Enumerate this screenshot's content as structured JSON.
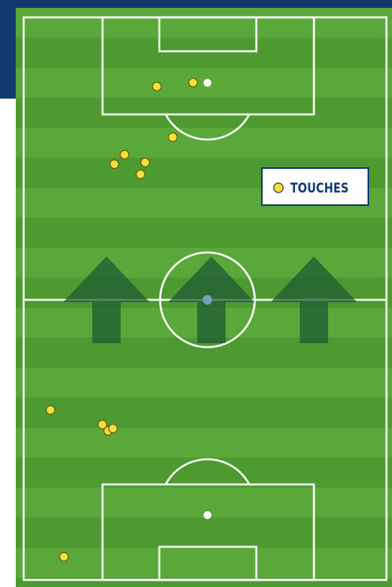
{
  "chart_data": {
    "type": "scatter",
    "series": [
      {
        "name": "TOUCHES",
        "color": "#f2e03c",
        "x": [
          36.7,
          46.7,
          41.1,
          27.8,
          25.0,
          33.5,
          32.2,
          7.4,
          21.7,
          23.3,
          24.6,
          11.1
        ],
        "values": [
          12.3,
          11.6,
          21.3,
          24.4,
          26.1,
          25.8,
          27.9,
          69.8,
          72.4,
          73.5,
          73.1,
          95.9
        ]
      }
    ],
    "xlim": [
      0,
      100
    ],
    "ylim": [
      100,
      0
    ],
    "legend": "upper-right"
  }
}
